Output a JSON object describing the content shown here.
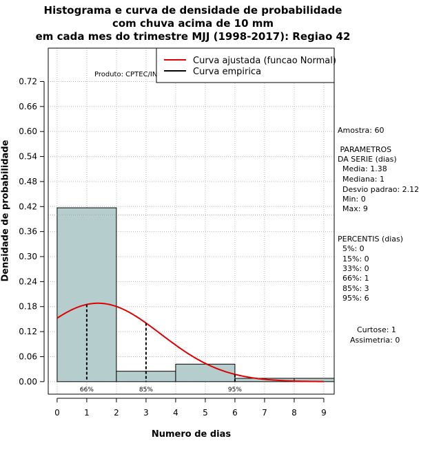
{
  "title_lines": [
    "Histograma e curva de densidade de probabilidade",
    "com chuva acima de 10 mm",
    "em cada mes do trimestre MJJ (1998-2017): Regiao 42"
  ],
  "product": "Produto: CPTEC/INPE",
  "legend": {
    "fitted": "Curva ajustada (funcao Normal)",
    "empirical": "Curva empirica",
    "fitted_color": "#e00000",
    "empirical_color": "#000000"
  },
  "side": {
    "sample": "Amostra: 60",
    "params_title_1": " PARAMETROS",
    "params_title_2": "DA SERIE (dias)",
    "params": [
      "  Media: 1.38",
      "  Mediana: 1",
      "  Desvio padrao: 2.12",
      "  Min: 0",
      "  Max: 9"
    ],
    "pct_title": "PERCENTIS (dias)",
    "pcts": [
      "  5%: 0",
      "  15%: 0",
      "  33%: 0",
      "  66%: 1",
      "  85%: 3",
      "  95%: 6"
    ],
    "kurtosis": "Curtose: 1",
    "skewness": "Assimetria: 0"
  },
  "chart_data": {
    "type": "bar",
    "title": "Histograma e curva de densidade de probabilidade com chuva acima de 10 mm em cada mes do trimestre MJJ (1998-2017): Regiao 42",
    "xlabel": "Numero de dias",
    "ylabel": "Densidade de probabilidade",
    "xlim": [
      -0.3,
      9.35
    ],
    "ylim": [
      -0.03,
      0.8
    ],
    "xticks": [
      0,
      1,
      2,
      3,
      4,
      5,
      6,
      7,
      8,
      9
    ],
    "yticks": [
      0.0,
      0.06,
      0.12,
      0.18,
      0.24,
      0.3,
      0.36,
      0.42,
      0.48,
      0.54,
      0.6,
      0.66,
      0.72
    ],
    "ytick_labels": [
      "0.00",
      "0.06",
      "0.12",
      "0.18",
      "0.24",
      "0.30",
      "0.36",
      "0.42",
      "0.48",
      "0.54",
      "0.60",
      "0.66",
      "0.72"
    ],
    "bins": [
      {
        "from": 0,
        "to": 2,
        "density": 0.417
      },
      {
        "from": 2,
        "to": 4,
        "density": 0.025
      },
      {
        "from": 4,
        "to": 6,
        "density": 0.042
      },
      {
        "from": 6,
        "to": 8,
        "density": 0.008
      },
      {
        "from": 8,
        "to": 10,
        "density": 0.008
      }
    ],
    "bar_color": "#b5cdcd",
    "hline": 0.4,
    "normal_fit": {
      "mean": 1.38,
      "sd": 2.12,
      "x_from": 0,
      "x_to": 9
    },
    "percentile_markers": [
      {
        "x": 1,
        "label": "66%"
      },
      {
        "x": 3,
        "label": "85%"
      },
      {
        "x": 6,
        "label": "95%"
      }
    ],
    "grid": true
  }
}
